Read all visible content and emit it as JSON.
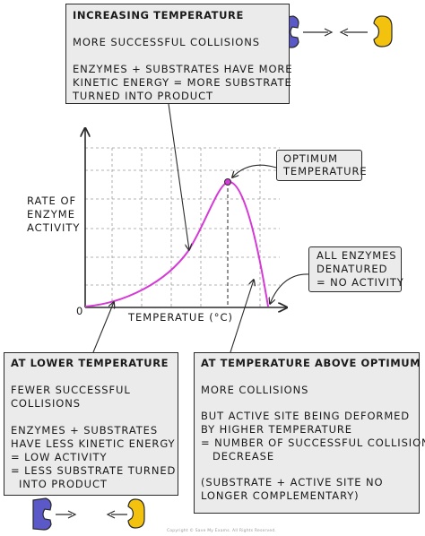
{
  "graph": {
    "origin_label": "0",
    "y_axis_label": [
      "RATE OF",
      "ENZYME",
      "ACTIVITY"
    ],
    "x_axis_label": "TEMPERATUE (°C)",
    "optimum_callout": [
      "OPTIMUM",
      "TEMPERATURE"
    ],
    "denatured_callout": [
      "ALL ENZYMES",
      "DENATURED",
      "= NO ACTIVITY"
    ]
  },
  "increasing_box": {
    "title": "INCREASING TEMPERATURE",
    "lines": [
      "MORE SUCCESSFUL COLLISIONS",
      "ENZYMES + SUBSTRATES HAVE MORE",
      "KINETIC ENERGY = MORE SUBSTRATE",
      "TURNED INTO PRODUCT"
    ]
  },
  "lower_box": {
    "title": "AT LOWER TEMPERATURE",
    "lines": [
      "FEWER SUCCESSFUL",
      "COLLISIONS",
      "ENZYMES + SUBSTRATES",
      "HAVE LESS KINETIC ENERGY",
      "= LOW ACTIVITY",
      "= LESS SUBSTRATE TURNED",
      "INTO PRODUCT"
    ]
  },
  "above_box": {
    "title": "AT TEMPERATURE ABOVE OPTIMUM",
    "lines": [
      "MORE COLLISIONS",
      "BUT ACTIVE SITE BEING DEFORMED",
      "BY HIGHER TEMPERATURE",
      "= NUMBER OF SUCCESSFUL COLLISIONS",
      "DECREASE",
      "(SUBSTRATE + ACTIVE SITE NO",
      "LONGER COMPLEMENTARY)"
    ]
  },
  "copyright": "Copyright © Save My Exams. All Rights Reserved.",
  "colors": {
    "curve": "#d63ad6",
    "enzyme": "#5b58c7",
    "substrate": "#f2c20f",
    "box_fill": "#ebebeb",
    "axis": "#2a2a2a",
    "grid": "#9a9a9a"
  }
}
